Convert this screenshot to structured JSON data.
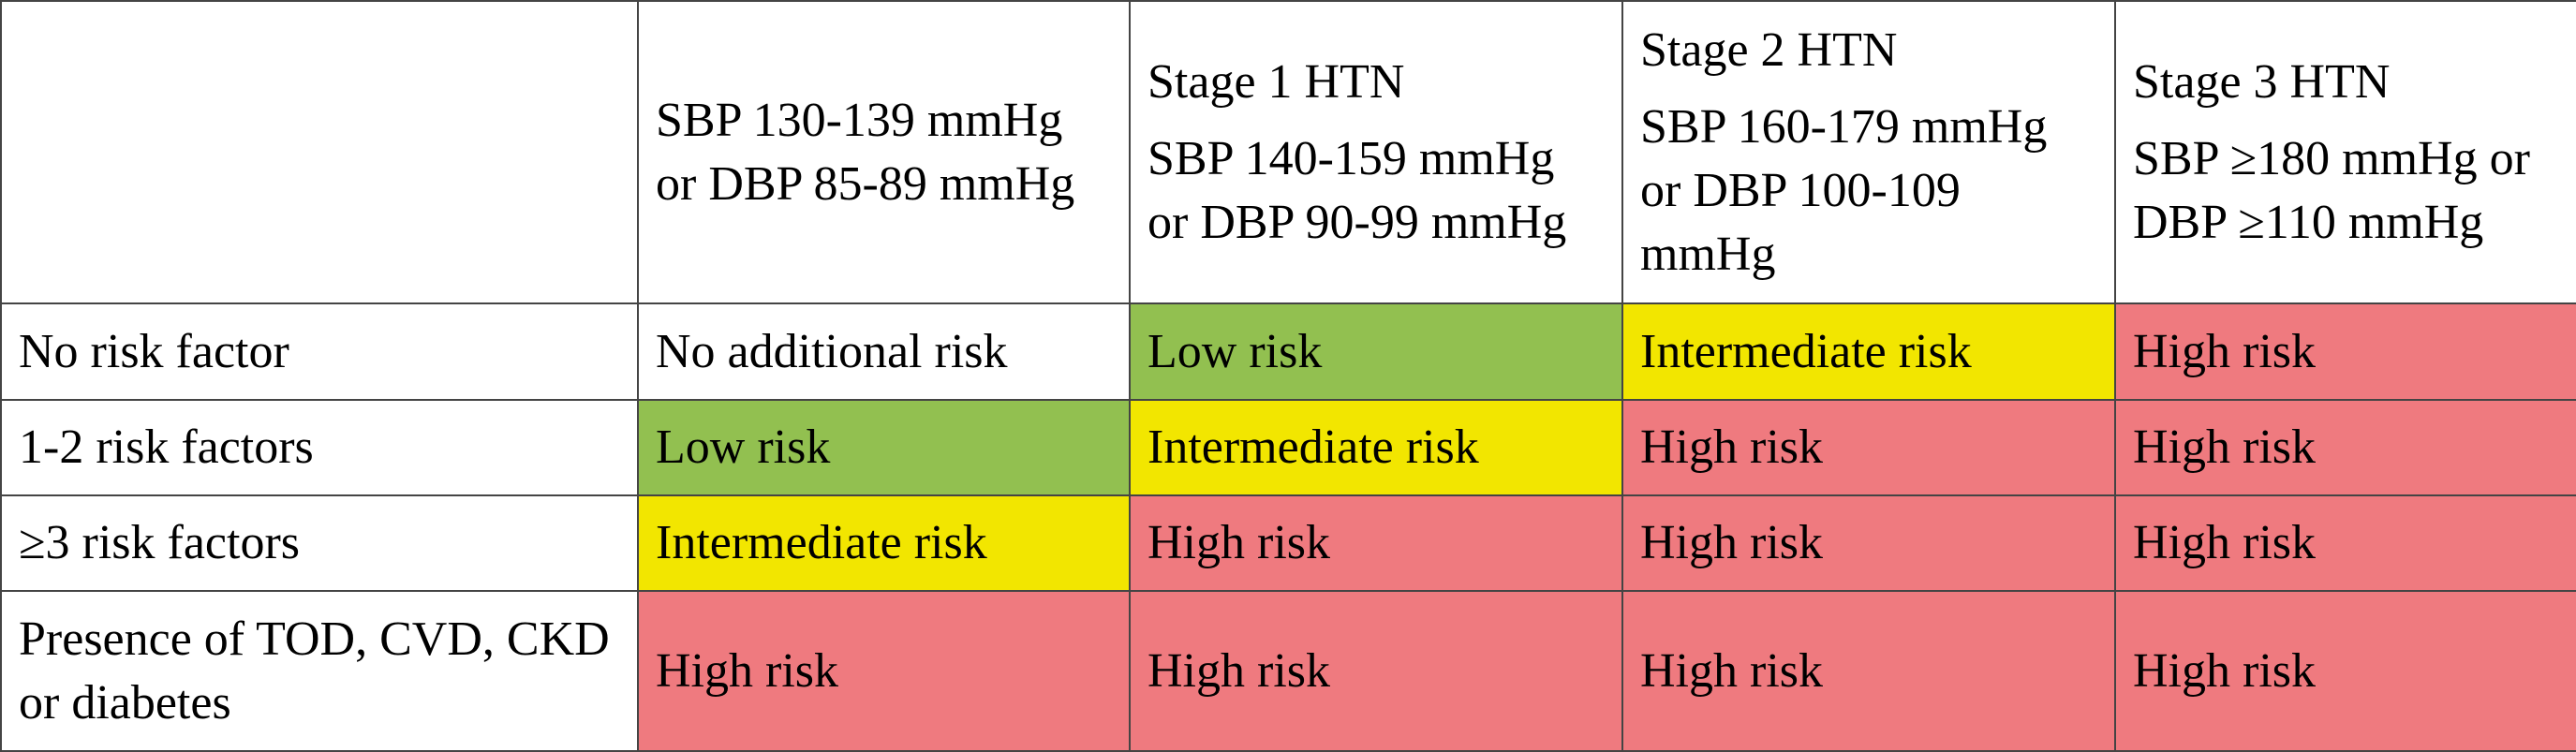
{
  "table": {
    "header": [
      {
        "criteria": "SBP 130-139 mmHg or DBP 85-89 mmHg"
      },
      {
        "stage": "Stage 1 HTN",
        "criteria": "SBP 140-159 mmHg or DBP 90-99 mmHg"
      },
      {
        "stage": "Stage 2 HTN",
        "criteria": "SBP 160-179 mmHg or DBP 100-109 mmHg"
      },
      {
        "stage": "Stage 3 HTN",
        "criteria": "SBP ≥180 mmHg or DBP ≥110 mmHg"
      }
    ],
    "rows": [
      {
        "label": "No risk factor",
        "cells": [
          {
            "text": "No additional risk",
            "color": "#ffffff"
          },
          {
            "text": "Low risk",
            "color": "#92c050"
          },
          {
            "text": "Intermediate risk",
            "color": "#f2e600"
          },
          {
            "text": "High risk",
            "color": "#ef7a7f"
          }
        ]
      },
      {
        "label": "1-2 risk factors",
        "cells": [
          {
            "text": "Low risk",
            "color": "#92c050"
          },
          {
            "text": "Intermediate risk",
            "color": "#f2e600"
          },
          {
            "text": "High risk",
            "color": "#ef7a7f"
          },
          {
            "text": "High risk",
            "color": "#ef7a7f"
          }
        ]
      },
      {
        "label": "≥3 risk factors",
        "cells": [
          {
            "text": "Intermediate risk",
            "color": "#f2e600"
          },
          {
            "text": "High risk",
            "color": "#ef7a7f"
          },
          {
            "text": "High risk",
            "color": "#ef7a7f"
          },
          {
            "text": "High risk",
            "color": "#ef7a7f"
          }
        ]
      },
      {
        "label": "Presence of TOD, CVD, CKD or diabetes",
        "cells": [
          {
            "text": "High risk",
            "color": "#ef7a7f"
          },
          {
            "text": "High risk",
            "color": "#ef7a7f"
          },
          {
            "text": "High risk",
            "color": "#ef7a7f"
          },
          {
            "text": "High risk",
            "color": "#ef7a7f"
          }
        ]
      }
    ]
  }
}
